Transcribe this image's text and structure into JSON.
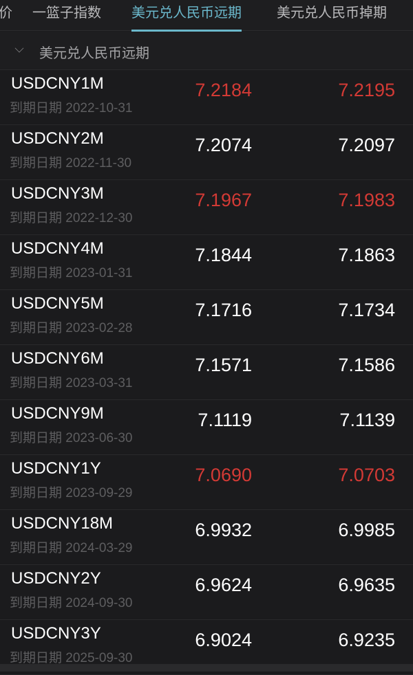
{
  "tabs": [
    {
      "label": "价",
      "active": false
    },
    {
      "label": "一篮子指数",
      "active": false
    },
    {
      "label": "美元兑人民币远期",
      "active": true
    },
    {
      "label": "美元兑人民币掉期",
      "active": false
    }
  ],
  "section": {
    "label": "美元兑人民币远期",
    "icon": "chevron-down-icon"
  },
  "colors": {
    "accent": "#6bb8cc",
    "up": "#d33a35",
    "neutral": "#ffffff"
  },
  "date_prefix": "到期日期",
  "rows": [
    {
      "symbol": "USDCNY1M",
      "date": "2022-10-31",
      "bid": "7.2184",
      "ask": "7.2195",
      "red": true
    },
    {
      "symbol": "USDCNY2M",
      "date": "2022-11-30",
      "bid": "7.2074",
      "ask": "7.2097",
      "red": false
    },
    {
      "symbol": "USDCNY3M",
      "date": "2022-12-30",
      "bid": "7.1967",
      "ask": "7.1983",
      "red": true
    },
    {
      "symbol": "USDCNY4M",
      "date": "2023-01-31",
      "bid": "7.1844",
      "ask": "7.1863",
      "red": false
    },
    {
      "symbol": "USDCNY5M",
      "date": "2023-02-28",
      "bid": "7.1716",
      "ask": "7.1734",
      "red": false
    },
    {
      "symbol": "USDCNY6M",
      "date": "2023-03-31",
      "bid": "7.1571",
      "ask": "7.1586",
      "red": false
    },
    {
      "symbol": "USDCNY9M",
      "date": "2023-06-30",
      "bid": "7.1119",
      "ask": "7.1139",
      "red": false
    },
    {
      "symbol": "USDCNY1Y",
      "date": "2023-09-29",
      "bid": "7.0690",
      "ask": "7.0703",
      "red": true
    },
    {
      "symbol": "USDCNY18M",
      "date": "2024-03-29",
      "bid": "6.9932",
      "ask": "6.9985",
      "red": false
    },
    {
      "symbol": "USDCNY2Y",
      "date": "2024-09-30",
      "bid": "6.9624",
      "ask": "6.9635",
      "red": false
    },
    {
      "symbol": "USDCNY3Y",
      "date": "2025-09-30",
      "bid": "6.9024",
      "ask": "6.9235",
      "red": false
    }
  ]
}
